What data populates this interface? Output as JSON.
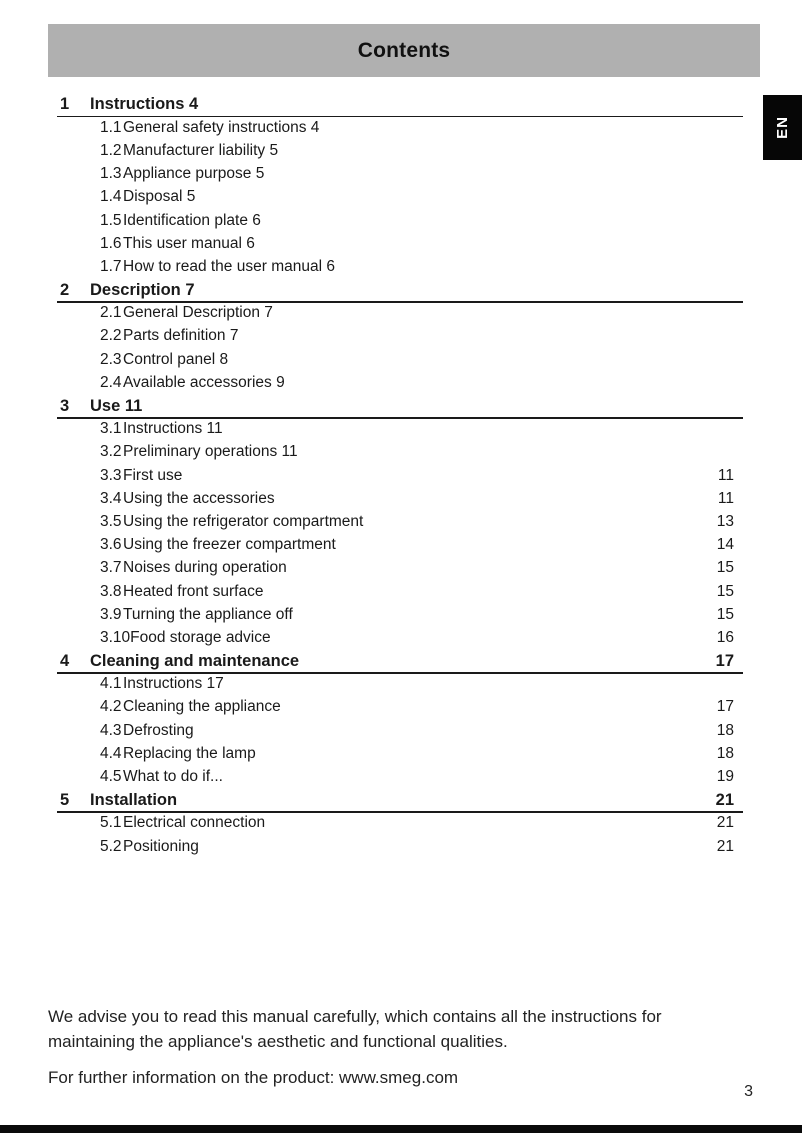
{
  "page": {
    "title": "Contents",
    "language_tab": "EN",
    "page_number": "3"
  },
  "colors": {
    "header_bar": "#b0b0b0",
    "text": "#1a1a1a",
    "tab_bg": "#060606",
    "tab_text": "#ffffff",
    "bottom_bar": "#0a0a0a"
  },
  "toc": {
    "rows": [
      {
        "level": 1,
        "num": "1",
        "title": "Instructions 4",
        "page": ""
      },
      {
        "level": 2,
        "num": "1.1",
        "title": "General safety instructions 4",
        "page": ""
      },
      {
        "level": 2,
        "num": "1.2",
        "title": "Manufacturer liability 5",
        "page": ""
      },
      {
        "level": 2,
        "num": "1.3",
        "title": "Appliance purpose 5",
        "page": ""
      },
      {
        "level": 2,
        "num": "1.4",
        "title": "Disposal 5",
        "page": ""
      },
      {
        "level": 2,
        "num": "1.5",
        "title": "Identification plate 6",
        "page": ""
      },
      {
        "level": 2,
        "num": "1.6",
        "title": "This user manual 6",
        "page": ""
      },
      {
        "level": 2,
        "num": "1.7",
        "title": "How to read the user manual 6",
        "page": ""
      },
      {
        "level": 1,
        "num": "2",
        "title": "Description 7",
        "page": ""
      },
      {
        "level": 2,
        "num": "2.1",
        "title": "General Description 7",
        "page": ""
      },
      {
        "level": 2,
        "num": "2.2",
        "title": "Parts definition 7",
        "page": ""
      },
      {
        "level": 2,
        "num": "2.3",
        "title": "Control panel 8",
        "page": ""
      },
      {
        "level": 2,
        "num": "2.4",
        "title": "Available accessories 9",
        "page": ""
      },
      {
        "level": 1,
        "num": "3",
        "title": "Use 11",
        "page": ""
      },
      {
        "level": 2,
        "num": "3.1",
        "title": "Instructions 11",
        "page": ""
      },
      {
        "level": 2,
        "num": "3.2",
        "title": "Preliminary operations 11",
        "page": ""
      },
      {
        "level": 2,
        "num": "3.3",
        "title": "First use",
        "page": "11"
      },
      {
        "level": 2,
        "num": "3.4",
        "title": "Using the accessories",
        "page": "11"
      },
      {
        "level": 2,
        "num": "3.5",
        "title": "Using the refrigerator compartment",
        "page": "13"
      },
      {
        "level": 2,
        "num": "3.6",
        "title": "Using the freezer compartment",
        "page": "14"
      },
      {
        "level": 2,
        "num": "3.7",
        "title": "Noises during operation",
        "page": "15"
      },
      {
        "level": 2,
        "num": "3.8",
        "title": "Heated front surface",
        "page": "15"
      },
      {
        "level": 2,
        "num": "3.9",
        "title": "Turning the appliance off",
        "page": "15"
      },
      {
        "level": 2,
        "num": "3.10",
        "title": "Food storage advice",
        "page": "16"
      },
      {
        "level": 1,
        "num": "4",
        "title": "Cleaning and maintenance",
        "page": "17"
      },
      {
        "level": 2,
        "num": "4.1",
        "title": "Instructions 17",
        "page": ""
      },
      {
        "level": 2,
        "num": "4.2",
        "title": "Cleaning the appliance",
        "page": "17"
      },
      {
        "level": 2,
        "num": "4.3",
        "title": "Defrosting",
        "page": "18"
      },
      {
        "level": 2,
        "num": "4.4",
        "title": "Replacing the lamp",
        "page": "18"
      },
      {
        "level": 2,
        "num": "4.5",
        "title": "What to do if...",
        "page": "19"
      },
      {
        "level": 1,
        "num": "5",
        "title": "Installation",
        "page": "21"
      },
      {
        "level": 2,
        "num": "5.1",
        "title": "Electrical connection",
        "page": "21"
      },
      {
        "level": 2,
        "num": "5.2",
        "title": "Positioning",
        "page": "21"
      }
    ]
  },
  "footer": {
    "line1": "We advise you to read this manual carefully, which contains all the instructions for maintaining the appliance's aesthetic and functional qualities.",
    "line2": "For further information on the product: www.smeg.com"
  }
}
